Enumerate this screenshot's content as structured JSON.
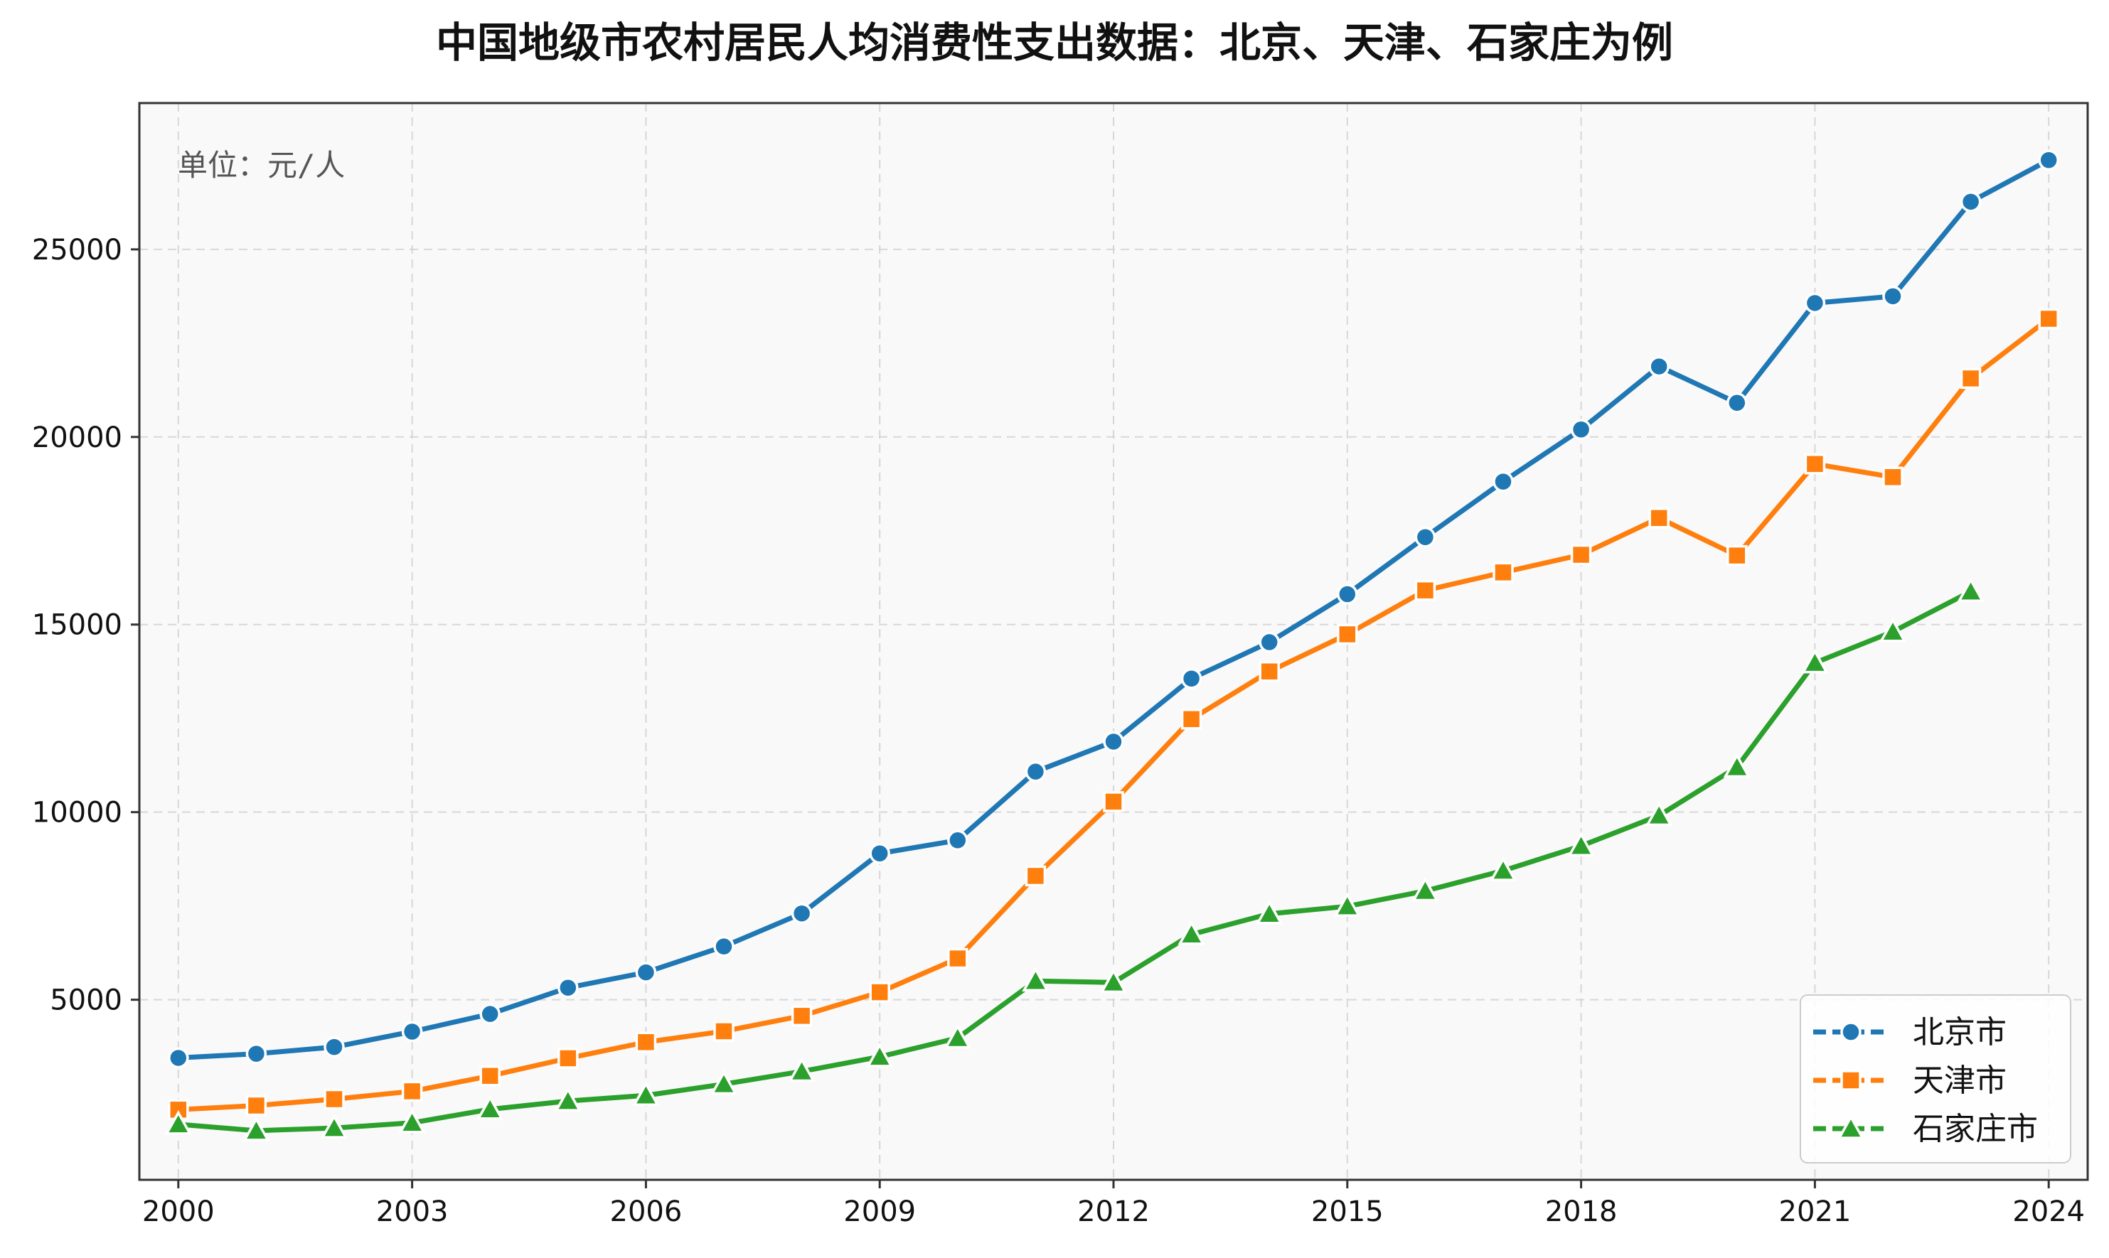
{
  "chart_data": {
    "type": "line",
    "title": "中国地级市农村居民人均消费性支出数据：北京、天津、石家庄为例",
    "annotation": "单位：元/人",
    "xlabel": "",
    "ylabel": "",
    "x_range": [
      1999.5,
      2024.5
    ],
    "ylim": [
      200,
      28900
    ],
    "x_ticks": [
      2000,
      2003,
      2006,
      2009,
      2012,
      2015,
      2018,
      2021,
      2024
    ],
    "y_ticks": [
      5000,
      10000,
      15000,
      20000,
      25000
    ],
    "grid": true,
    "legend_position": "lower-right",
    "series": [
      {
        "name": "北京市",
        "color": "#1f77b4",
        "marker": "circle",
        "x": [
          2000,
          2001,
          2002,
          2003,
          2004,
          2005,
          2006,
          2007,
          2008,
          2009,
          2010,
          2011,
          2012,
          2013,
          2014,
          2015,
          2016,
          2017,
          2018,
          2019,
          2020,
          2021,
          2022,
          2023,
          2024
        ],
        "y": [
          3450,
          3560,
          3740,
          4150,
          4620,
          5320,
          5730,
          6420,
          7300,
          8900,
          9250,
          11080,
          11880,
          13560,
          14530,
          15810,
          17330,
          18810,
          20200,
          21880,
          20910,
          23570,
          23750,
          26270,
          27380
        ]
      },
      {
        "name": "天津市",
        "color": "#ff7f0e",
        "marker": "square",
        "x": [
          2000,
          2001,
          2002,
          2003,
          2004,
          2005,
          2006,
          2007,
          2008,
          2009,
          2010,
          2011,
          2012,
          2013,
          2014,
          2015,
          2016,
          2017,
          2018,
          2019,
          2020,
          2021,
          2022,
          2023,
          2024
        ],
        "y": [
          2070,
          2180,
          2350,
          2560,
          2970,
          3440,
          3870,
          4160,
          4570,
          5200,
          6100,
          8300,
          10280,
          12480,
          13750,
          14740,
          15910,
          16390,
          16860,
          17840,
          16840,
          19280,
          18930,
          21560,
          23150
        ]
      },
      {
        "name": "石家庄市",
        "color": "#2ca02c",
        "marker": "triangle",
        "x": [
          2000,
          2001,
          2002,
          2003,
          2004,
          2005,
          2006,
          2007,
          2008,
          2009,
          2010,
          2011,
          2012,
          2013,
          2014,
          2015,
          2016,
          2017,
          2018,
          2019,
          2020,
          2021,
          2022,
          2023
        ],
        "y": [
          1680,
          1510,
          1580,
          1720,
          2080,
          2300,
          2450,
          2750,
          3090,
          3480,
          3980,
          5500,
          5460,
          6740,
          7290,
          7490,
          7900,
          8440,
          9100,
          9910,
          11200,
          13980,
          14810,
          15880
        ]
      }
    ]
  }
}
